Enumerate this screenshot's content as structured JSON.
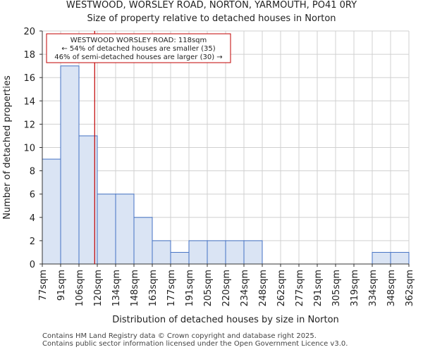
{
  "titles": {
    "line1": "WESTWOOD, WORSLEY ROAD, NORTON, YARMOUTH, PO41 0RY",
    "line2": "Size of property relative to detached houses in Norton"
  },
  "footer": {
    "line1": "Contains HM Land Registry data © Crown copyright and database right 2025.",
    "line2": "Contains public sector information licensed under the Open Government Licence v3.0."
  },
  "chart_data": {
    "type": "bar",
    "title": "WESTWOOD, WORSLEY ROAD, NORTON, YARMOUTH, PO41 0RY — Size of property relative to detached houses in Norton",
    "xlabel": "Distribution of detached houses by size in Norton",
    "ylabel": "Number of detached properties",
    "bin_edges": [
      77,
      91,
      106,
      120,
      134,
      148,
      163,
      177,
      191,
      205,
      220,
      234,
      248,
      262,
      277,
      291,
      305,
      319,
      334,
      348,
      362
    ],
    "tick_labels": [
      "77sqm",
      "91sqm",
      "106sqm",
      "120sqm",
      "134sqm",
      "148sqm",
      "163sqm",
      "177sqm",
      "191sqm",
      "205sqm",
      "220sqm",
      "234sqm",
      "248sqm",
      "262sqm",
      "277sqm",
      "291sqm",
      "305sqm",
      "319sqm",
      "334sqm",
      "348sqm",
      "362sqm"
    ],
    "values": [
      9,
      17,
      11,
      6,
      6,
      4,
      2,
      1,
      2,
      2,
      2,
      2,
      0,
      0,
      0,
      0,
      0,
      0,
      1,
      1
    ],
    "ylim": [
      0,
      20
    ],
    "yticks": [
      0,
      2,
      4,
      6,
      8,
      10,
      12,
      14,
      16,
      18,
      20
    ],
    "grid": true,
    "colors": {
      "bar_fill": "#dae4f4",
      "bar_edge": "#4472c4",
      "marker": "#c00000",
      "grid": "#d0d0d0"
    },
    "marker": {
      "value": 118,
      "label_lines": [
        "WESTWOOD WORSLEY ROAD: 118sqm",
        "← 54% of detached houses are smaller (35)",
        "46% of semi-detached houses are larger (30) →"
      ]
    }
  }
}
